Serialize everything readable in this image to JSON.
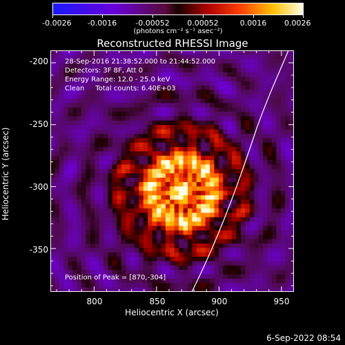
{
  "colorbar": {
    "ticks": [
      "-0.0026",
      "-0.0016",
      "-0.00052",
      "0.00052",
      "0.0016",
      "0.0026"
    ],
    "units": "(photons cm⁻² s⁻¹ asec⁻²)"
  },
  "title": "Reconstructed RHESSI Image",
  "info": {
    "line1": "28-Sep-2016 21:38:52.000 to 21:44:52.000",
    "line2": "Detectors: 3F 8F, Att 0",
    "line3": "Energy Range: 12.0 - 25.0 keV",
    "line4": "Clean     Total counts: 6.40E+03",
    "peak": "Position of Peak = [870,-304]"
  },
  "axes": {
    "x_label": "Heliocentric X (arcsec)",
    "y_label": "Heliocentric Y (arcsec)",
    "x_ticks": [
      "800",
      "850",
      "900",
      "950"
    ],
    "y_ticks": [
      "-200",
      "-250",
      "-300",
      "-350"
    ],
    "x_range": [
      765,
      960
    ],
    "y_range": [
      -385,
      -190
    ]
  },
  "image": {
    "peak_xy": [
      870,
      -304
    ]
  },
  "footer": {
    "date": "6-Sep-2022 08:54"
  }
}
